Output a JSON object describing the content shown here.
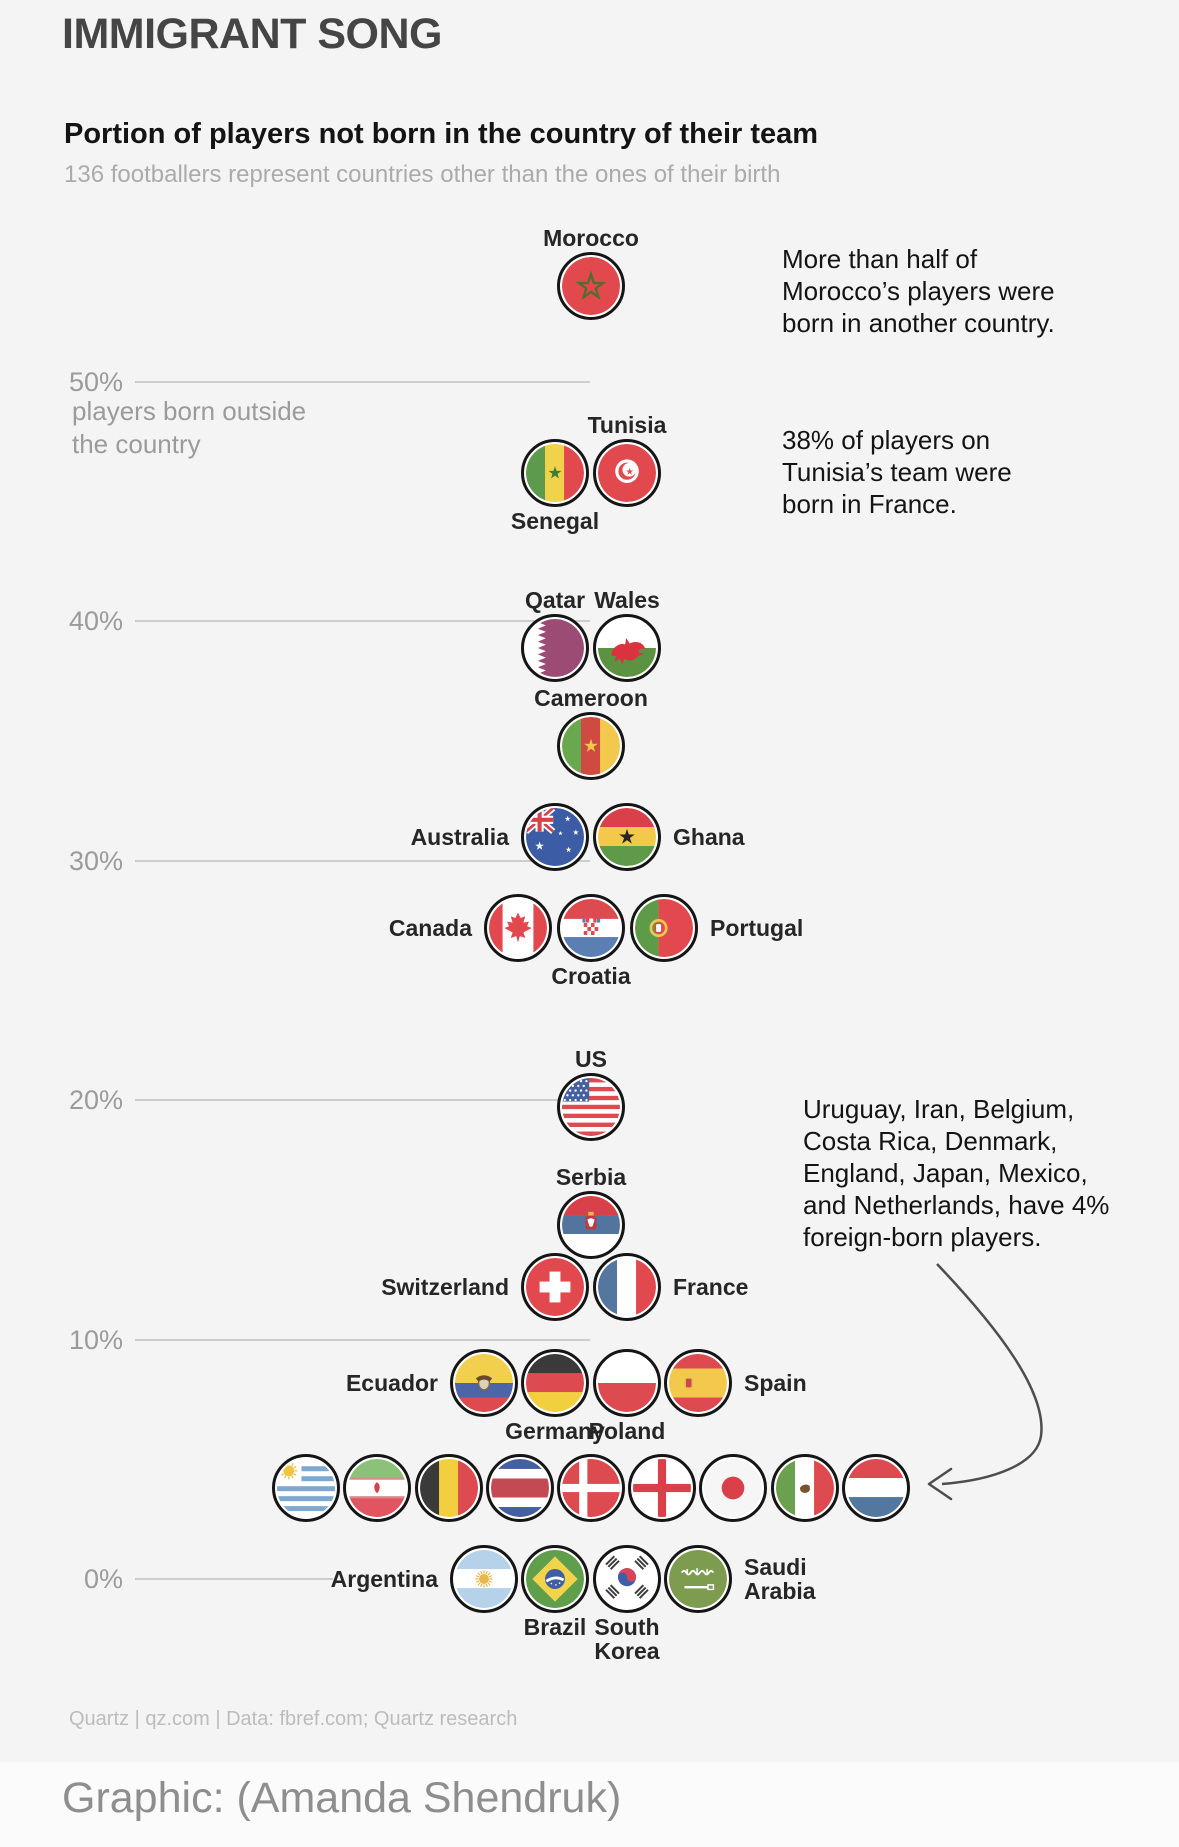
{
  "header": {
    "title": "IMMIGRANT SONG",
    "subtitle": "Portion of players not born in the country of their team",
    "description": "136 footballers represent countries other than the ones of their birth"
  },
  "axis": {
    "caption": "players born outside\nthe country",
    "ticks": [
      {
        "label": "50%",
        "pct": 50
      },
      {
        "label": "40%",
        "pct": 40
      },
      {
        "label": "30%",
        "pct": 30
      },
      {
        "label": "20%",
        "pct": 20
      },
      {
        "label": "10%",
        "pct": 10
      },
      {
        "label": "0%",
        "pct": 0
      }
    ]
  },
  "annotations": {
    "morocco": "More than half of\nMorocco’s players were\nborn in another country.",
    "tunisia": "38% of players on\nTunisia’s team were\nborn in France.",
    "four_percent": "Uruguay, Iran, Belgium,\nCosta Rica, Denmark,\nEngland, Japan, Mexico,\nand Netherlands, have 4%\nforeign-born players."
  },
  "footer": {
    "credit_line": "Quartz | qz.com | Data: fbref.com; Quartz research",
    "graphic_credit": "Graphic: (Amanda Shendruk)"
  },
  "chart_data": {
    "type": "scatter",
    "title": "Portion of players not born in the country of their team",
    "ylabel": "% of players born outside the country",
    "ylim": [
      0,
      56
    ],
    "grid": true,
    "legend": false,
    "points": [
      {
        "country": "Morocco",
        "flag": "morocco",
        "pct": 54,
        "dx": 0,
        "label_pos": "above"
      },
      {
        "country": "Senegal",
        "flag": "senegal",
        "pct": 46.2,
        "dx": -36,
        "label_pos": "below"
      },
      {
        "country": "Tunisia",
        "flag": "tunisia",
        "pct": 46.2,
        "dx": 36,
        "label_pos": "above"
      },
      {
        "country": "Qatar",
        "flag": "qatar",
        "pct": 38.9,
        "dx": -36,
        "label_pos": "above"
      },
      {
        "country": "Wales",
        "flag": "wales",
        "pct": 38.9,
        "dx": 36,
        "label_pos": "above"
      },
      {
        "country": "Cameroon",
        "flag": "cameroon",
        "pct": 34.8,
        "dx": 0,
        "label_pos": "above"
      },
      {
        "country": "Australia",
        "flag": "australia",
        "pct": 31,
        "dx": -36,
        "label_pos": "left"
      },
      {
        "country": "Ghana",
        "flag": "ghana",
        "pct": 31,
        "dx": 36,
        "label_pos": "right"
      },
      {
        "country": "Canada",
        "flag": "canada",
        "pct": 27.2,
        "dx": -73,
        "label_pos": "left"
      },
      {
        "country": "Croatia",
        "flag": "croatia",
        "pct": 27.2,
        "dx": 0,
        "label_pos": "below"
      },
      {
        "country": "Portugal",
        "flag": "portugal",
        "pct": 27.2,
        "dx": 73,
        "label_pos": "right"
      },
      {
        "country": "US",
        "flag": "us",
        "pct": 19.7,
        "dx": 0,
        "label_pos": "above"
      },
      {
        "country": "Serbia",
        "flag": "serbia",
        "pct": 14.8,
        "dx": 0,
        "label_pos": "above"
      },
      {
        "country": "Switzerland",
        "flag": "switzerland",
        "pct": 12.2,
        "dx": -36,
        "label_pos": "left"
      },
      {
        "country": "France",
        "flag": "france",
        "pct": 12.2,
        "dx": 36,
        "label_pos": "right"
      },
      {
        "country": "Ecuador",
        "flag": "ecuador",
        "pct": 8.2,
        "dx": -107,
        "label_pos": "left"
      },
      {
        "country": "Germany",
        "flag": "germany",
        "pct": 8.2,
        "dx": -36,
        "label_pos": "below"
      },
      {
        "country": "Poland",
        "flag": "poland",
        "pct": 8.2,
        "dx": 36,
        "label_pos": "below"
      },
      {
        "country": "Spain",
        "flag": "spain",
        "pct": 8.2,
        "dx": 107,
        "label_pos": "right"
      },
      {
        "country": "Uruguay",
        "flag": "uruguay",
        "pct": 3.8,
        "dx": -285,
        "label_pos": "none"
      },
      {
        "country": "Iran",
        "flag": "iran",
        "pct": 3.8,
        "dx": -214,
        "label_pos": "none"
      },
      {
        "country": "Belgium",
        "flag": "belgium",
        "pct": 3.8,
        "dx": -142,
        "label_pos": "none"
      },
      {
        "country": "Costa Rica",
        "flag": "costa_rica",
        "pct": 3.8,
        "dx": -71,
        "label_pos": "none"
      },
      {
        "country": "Denmark",
        "flag": "denmark",
        "pct": 3.8,
        "dx": 0,
        "label_pos": "none"
      },
      {
        "country": "England",
        "flag": "england",
        "pct": 3.8,
        "dx": 71,
        "label_pos": "none"
      },
      {
        "country": "Japan",
        "flag": "japan",
        "pct": 3.8,
        "dx": 142,
        "label_pos": "none"
      },
      {
        "country": "Mexico",
        "flag": "mexico",
        "pct": 3.8,
        "dx": 214,
        "label_pos": "none"
      },
      {
        "country": "Netherlands",
        "flag": "netherlands",
        "pct": 3.8,
        "dx": 285,
        "label_pos": "none"
      },
      {
        "country": "Argentina",
        "flag": "argentina",
        "pct": 0,
        "dx": -107,
        "label_pos": "left"
      },
      {
        "country": "Brazil",
        "flag": "brazil",
        "pct": 0,
        "dx": -36,
        "label_pos": "below"
      },
      {
        "country": "South Korea",
        "flag": "south_korea",
        "pct": 0,
        "dx": 36,
        "label_pos": "below",
        "wrap": true
      },
      {
        "country": "Saudi Arabia",
        "flag": "saudi_arabia",
        "pct": 0,
        "dx": 107,
        "label_pos": "right",
        "wrap": true
      }
    ]
  }
}
